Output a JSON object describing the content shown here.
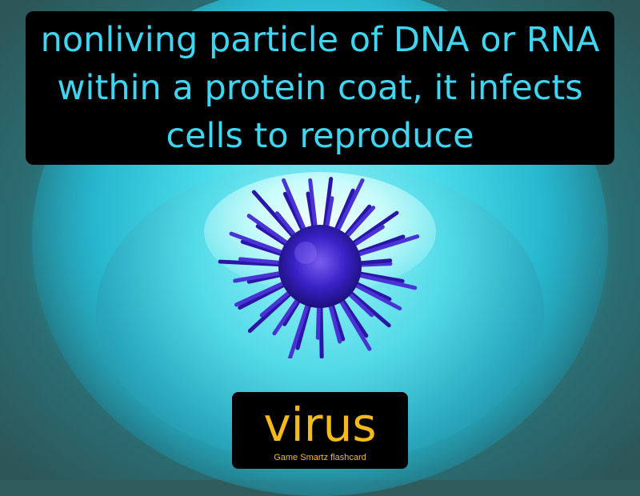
{
  "definition": "nonliving particle of DNA or RNA within a protein coat, it infects cells to reproduce",
  "term": "virus",
  "brand": "Game Smartz flashcard",
  "colors": {
    "definition_text": "#3fd6f2",
    "term_text": "#f5b918",
    "panel": "#000000",
    "virus": "#3a22c8"
  },
  "illustration": {
    "subject": "virus-particle-icon",
    "background": "cell-icon"
  }
}
